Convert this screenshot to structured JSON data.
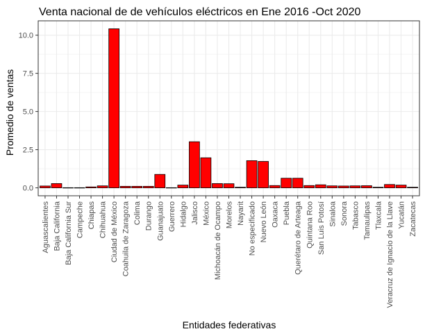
{
  "chart_data": {
    "type": "bar",
    "title": "Venta nacional de de vehículos eléctricos en Ene 2016 -Oct 2020",
    "xlabel": "Entidades federativas",
    "ylabel": "Promedio de ventas",
    "categories": [
      "Aguascalientes",
      "Baja California",
      "Baja California Sur",
      "Campeche",
      "Chiapas",
      "Chihuahua",
      "Ciudad de México",
      "Coahuila de Zaragoza",
      "Colima",
      "Durango",
      "Guanajuato",
      "Guerrero",
      "Hidalgo",
      "Jalisco",
      "México",
      "Michoacán de Ocampo",
      "Morelos",
      "Nayarit",
      "No especificado",
      "Nuevo León",
      "Oaxaca",
      "Puebla",
      "Querétaro de Arteaga",
      "Quintana Roo",
      "San Luis Potosí",
      "Sinaloa",
      "Sonora",
      "Tabasco",
      "Tamaulipas",
      "Tlaxcala",
      "Veracruz de Ignacio de la Llave",
      "Yucatán",
      "Zacatecas"
    ],
    "values": [
      0.12,
      0.28,
      0.01,
      0.01,
      0.06,
      0.13,
      10.42,
      0.1,
      0.1,
      0.1,
      0.88,
      0.01,
      0.18,
      3.02,
      1.97,
      0.28,
      0.27,
      0.04,
      1.78,
      1.73,
      0.15,
      0.63,
      0.63,
      0.15,
      0.2,
      0.13,
      0.12,
      0.13,
      0.14,
      0.04,
      0.22,
      0.18,
      0.04
    ],
    "ylim": [
      -0.52,
      10.94
    ],
    "yticks": [
      0.0,
      2.5,
      5.0,
      7.5,
      10.0
    ],
    "ytick_labels": [
      "0.0",
      "2.5",
      "5.0",
      "7.5",
      "10.0"
    ],
    "bar_color": "#ff0000",
    "bar_edge_color": "#000000",
    "grid": true,
    "grid_color": "#ebebeb",
    "background": "#ffffff",
    "legend": "none"
  }
}
